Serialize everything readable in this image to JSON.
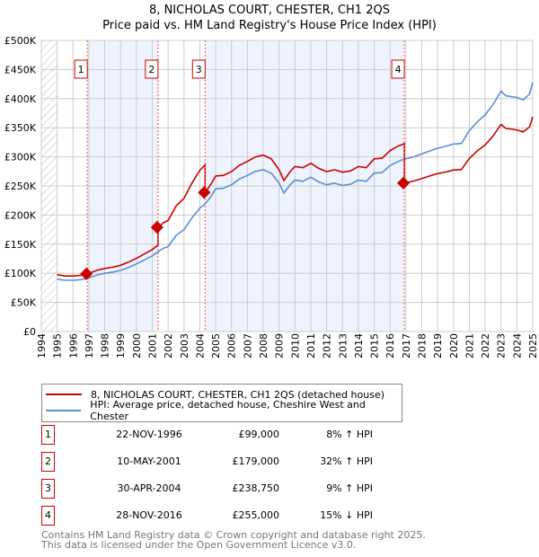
{
  "title": "8, NICHOLAS COURT, CHESTER, CH1 2QS",
  "subtitle": "Price paid vs. HM Land Registry's House Price Index (HPI)",
  "colors": {
    "property": "#cc0000",
    "hpi": "#5b8fd4",
    "shade": "#eef3fd"
  },
  "chart_data": {
    "type": "line",
    "title": "8, NICHOLAS COURT, CHESTER, CH1 2QS",
    "subtitle": "Price paid vs. HM Land Registry's House Price Index (HPI)",
    "xlim": [
      1994,
      2025
    ],
    "ylim": [
      0,
      500000
    ],
    "yticks": [
      {
        "v": 0,
        "label": "£0"
      },
      {
        "v": 50000,
        "label": "£50K"
      },
      {
        "v": 100000,
        "label": "£100K"
      },
      {
        "v": 150000,
        "label": "£150K"
      },
      {
        "v": 200000,
        "label": "£200K"
      },
      {
        "v": 250000,
        "label": "£250K"
      },
      {
        "v": 300000,
        "label": "£300K"
      },
      {
        "v": 350000,
        "label": "£350K"
      },
      {
        "v": 400000,
        "label": "£400K"
      },
      {
        "v": 450000,
        "label": "£450K"
      },
      {
        "v": 500000,
        "label": "£500K"
      }
    ],
    "xticks": [
      "1994",
      "1995",
      "1996",
      "1997",
      "1998",
      "1999",
      "2000",
      "2001",
      "2002",
      "2003",
      "2004",
      "2005",
      "2006",
      "2007",
      "2008",
      "2009",
      "2010",
      "2011",
      "2012",
      "2013",
      "2014",
      "2015",
      "2016",
      "2017",
      "2018",
      "2019",
      "2020",
      "2021",
      "2022",
      "2023",
      "2024",
      "2025"
    ],
    "legend": [
      "8, NICHOLAS COURT, CHESTER, CH1 2QS (detached house)",
      "HPI: Average price, detached house, Cheshire West and Chester"
    ],
    "hpi": [
      [
        1995,
        90000
      ],
      [
        1995.5,
        88000
      ],
      [
        1996,
        88000
      ],
      [
        1996.5,
        89000
      ],
      [
        1997,
        92000
      ],
      [
        1997.5,
        97000
      ],
      [
        1998,
        100000
      ],
      [
        1998.5,
        102000
      ],
      [
        1999,
        105000
      ],
      [
        1999.5,
        110000
      ],
      [
        2000,
        116000
      ],
      [
        2000.5,
        123000
      ],
      [
        2001,
        130000
      ],
      [
        2001.36,
        137000
      ],
      [
        2001.7,
        143000
      ],
      [
        2002,
        146000
      ],
      [
        2002.5,
        165000
      ],
      [
        2003,
        175000
      ],
      [
        2003.5,
        195000
      ],
      [
        2004,
        212000
      ],
      [
        2004.33,
        219000
      ],
      [
        2004.7,
        232000
      ],
      [
        2005,
        245000
      ],
      [
        2005.5,
        246000
      ],
      [
        2006,
        252000
      ],
      [
        2006.5,
        262000
      ],
      [
        2007,
        268000
      ],
      [
        2007.5,
        275000
      ],
      [
        2008,
        278000
      ],
      [
        2008.5,
        272000
      ],
      [
        2009,
        255000
      ],
      [
        2009.3,
        238000
      ],
      [
        2009.7,
        252000
      ],
      [
        2010,
        260000
      ],
      [
        2010.5,
        258000
      ],
      [
        2011,
        265000
      ],
      [
        2011.5,
        257000
      ],
      [
        2012,
        252000
      ],
      [
        2012.5,
        255000
      ],
      [
        2013,
        251000
      ],
      [
        2013.5,
        253000
      ],
      [
        2014,
        260000
      ],
      [
        2014.5,
        258000
      ],
      [
        2015,
        272000
      ],
      [
        2015.5,
        273000
      ],
      [
        2016,
        285000
      ],
      [
        2016.5,
        292000
      ],
      [
        2016.9,
        296000
      ],
      [
        2017.5,
        300000
      ],
      [
        2018,
        305000
      ],
      [
        2018.5,
        310000
      ],
      [
        2019,
        315000
      ],
      [
        2019.5,
        318000
      ],
      [
        2020,
        322000
      ],
      [
        2020.5,
        323000
      ],
      [
        2021,
        345000
      ],
      [
        2021.5,
        360000
      ],
      [
        2022,
        372000
      ],
      [
        2022.5,
        390000
      ],
      [
        2023,
        413000
      ],
      [
        2023.3,
        405000
      ],
      [
        2024,
        402000
      ],
      [
        2024.4,
        398000
      ],
      [
        2024.8,
        408000
      ],
      [
        2025,
        428000
      ]
    ],
    "sales": [
      {
        "n": "1",
        "x": 1996.9,
        "date": "22-NOV-1996",
        "price": 99000,
        "price_label": "£99,000",
        "hpi_change": "8% ↑ HPI"
      },
      {
        "n": "2",
        "x": 2001.36,
        "date": "10-MAY-2001",
        "price": 179000,
        "price_label": "£179,000",
        "hpi_change": "32% ↑ HPI"
      },
      {
        "n": "3",
        "x": 2004.33,
        "date": "30-APR-2004",
        "price": 238750,
        "price_label": "£238,750",
        "hpi_change": "9% ↑ HPI"
      },
      {
        "n": "4",
        "x": 2016.9,
        "date": "28-NOV-2016",
        "price": 255000,
        "price_label": "£255,000",
        "hpi_change": "15% ↓ HPI"
      }
    ]
  },
  "footer": {
    "line1": "Contains HM Land Registry data © Crown copyright and database right 2025.",
    "line2": "This data is licensed under the Open Government Licence v3.0."
  }
}
